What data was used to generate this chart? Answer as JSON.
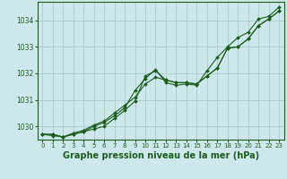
{
  "background_color": "#cce8ea",
  "plot_bg_color": "#cce8ea",
  "grid_color": "#b0d0d0",
  "line_color": "#1e5c1e",
  "marker_color": "#1e5c1e",
  "xlabel": "Graphe pression niveau de la mer (hPa)",
  "ylim": [
    1029.5,
    1034.7
  ],
  "xlim": [
    -0.5,
    23.5
  ],
  "yticks": [
    1030,
    1031,
    1032,
    1033,
    1034
  ],
  "xticks": [
    0,
    1,
    2,
    3,
    4,
    5,
    6,
    7,
    8,
    9,
    10,
    11,
    12,
    13,
    14,
    15,
    16,
    17,
    18,
    19,
    20,
    21,
    22,
    23
  ],
  "series": [
    [
      1029.7,
      1029.7,
      1029.6,
      1029.7,
      1029.8,
      1029.9,
      1030.0,
      1030.3,
      1030.6,
      1030.95,
      1031.9,
      1032.1,
      1031.75,
      1031.65,
      1031.65,
      1031.6,
      1031.9,
      1032.2,
      1032.95,
      1033.0,
      1033.3,
      1033.8,
      1034.05,
      1034.35
    ],
    [
      1029.7,
      1029.7,
      1029.6,
      1029.75,
      1029.85,
      1030.05,
      1030.2,
      1030.5,
      1030.8,
      1031.1,
      1031.6,
      1031.85,
      1031.75,
      1031.65,
      1031.65,
      1031.6,
      1031.9,
      1032.2,
      1032.95,
      1033.0,
      1033.3,
      1033.8,
      1034.05,
      1034.35
    ],
    [
      1029.7,
      1029.65,
      1029.6,
      1029.7,
      1029.8,
      1030.0,
      1030.15,
      1030.4,
      1030.7,
      1031.35,
      1031.8,
      1032.15,
      1031.65,
      1031.55,
      1031.6,
      1031.55,
      1032.1,
      1032.6,
      1033.0,
      1033.35,
      1033.55,
      1034.05,
      1034.15,
      1034.5
    ]
  ],
  "ylabel_fontsize": 6.5,
  "xlabel_fontsize": 7.0,
  "tick_fontsize": 5.5
}
